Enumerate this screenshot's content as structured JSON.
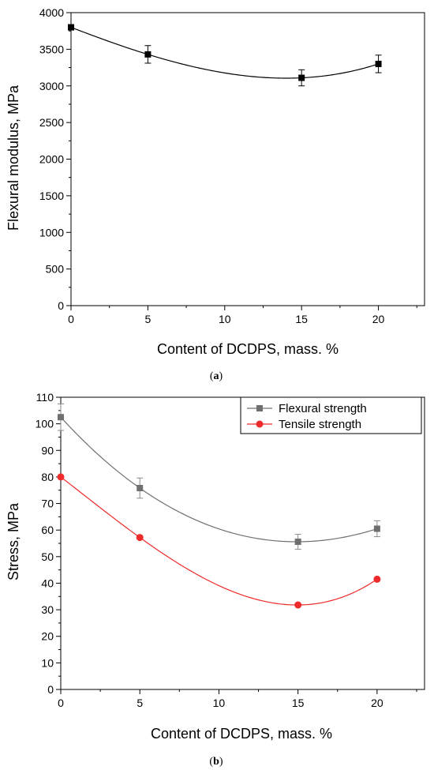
{
  "chart_data": [
    {
      "type": "scatter",
      "caption_letter": "a",
      "xlabel": "Content of DCDPS, mass. %",
      "ylabel": "Flexural modulus, MPa",
      "xlim": [
        0,
        23
      ],
      "ylim": [
        0,
        4000
      ],
      "xticks": [
        0,
        5,
        10,
        15,
        20
      ],
      "yticks": [
        0,
        500,
        1000,
        1500,
        2000,
        2500,
        3000,
        3500,
        4000
      ],
      "grid": false,
      "series": [
        {
          "name": "",
          "color": "#000000",
          "marker": "square",
          "x": [
            0,
            5,
            15,
            20
          ],
          "y": [
            3800,
            3430,
            3110,
            3300
          ],
          "error": [
            0,
            120,
            110,
            120
          ],
          "fit_curve": true
        }
      ]
    },
    {
      "type": "scatter",
      "caption_letter": "b",
      "xlabel": "Content of DCDPS, mass. %",
      "ylabel": "Stress, MPa",
      "xlim": [
        0,
        23
      ],
      "ylim": [
        0,
        110
      ],
      "xticks": [
        0,
        5,
        10,
        15,
        20
      ],
      "yticks": [
        0,
        10,
        20,
        30,
        40,
        50,
        60,
        70,
        80,
        90,
        100,
        110
      ],
      "grid": false,
      "legend_position": "top-right",
      "series": [
        {
          "name": "Flexural strength",
          "color": "#6f6f6f",
          "marker": "square",
          "x": [
            0,
            5,
            15,
            20
          ],
          "y": [
            102.5,
            75.8,
            55.6,
            60.5
          ],
          "error": [
            5.0,
            3.8,
            2.8,
            3.0
          ],
          "fit_curve": true
        },
        {
          "name": "Tensile strength",
          "color": "#ee2a2a",
          "marker": "circle",
          "x": [
            0,
            5,
            15,
            20
          ],
          "y": [
            80,
            57.2,
            31.8,
            41.5
          ],
          "error": [
            0,
            0,
            0,
            0
          ],
          "fit_curve": true
        }
      ]
    }
  ]
}
